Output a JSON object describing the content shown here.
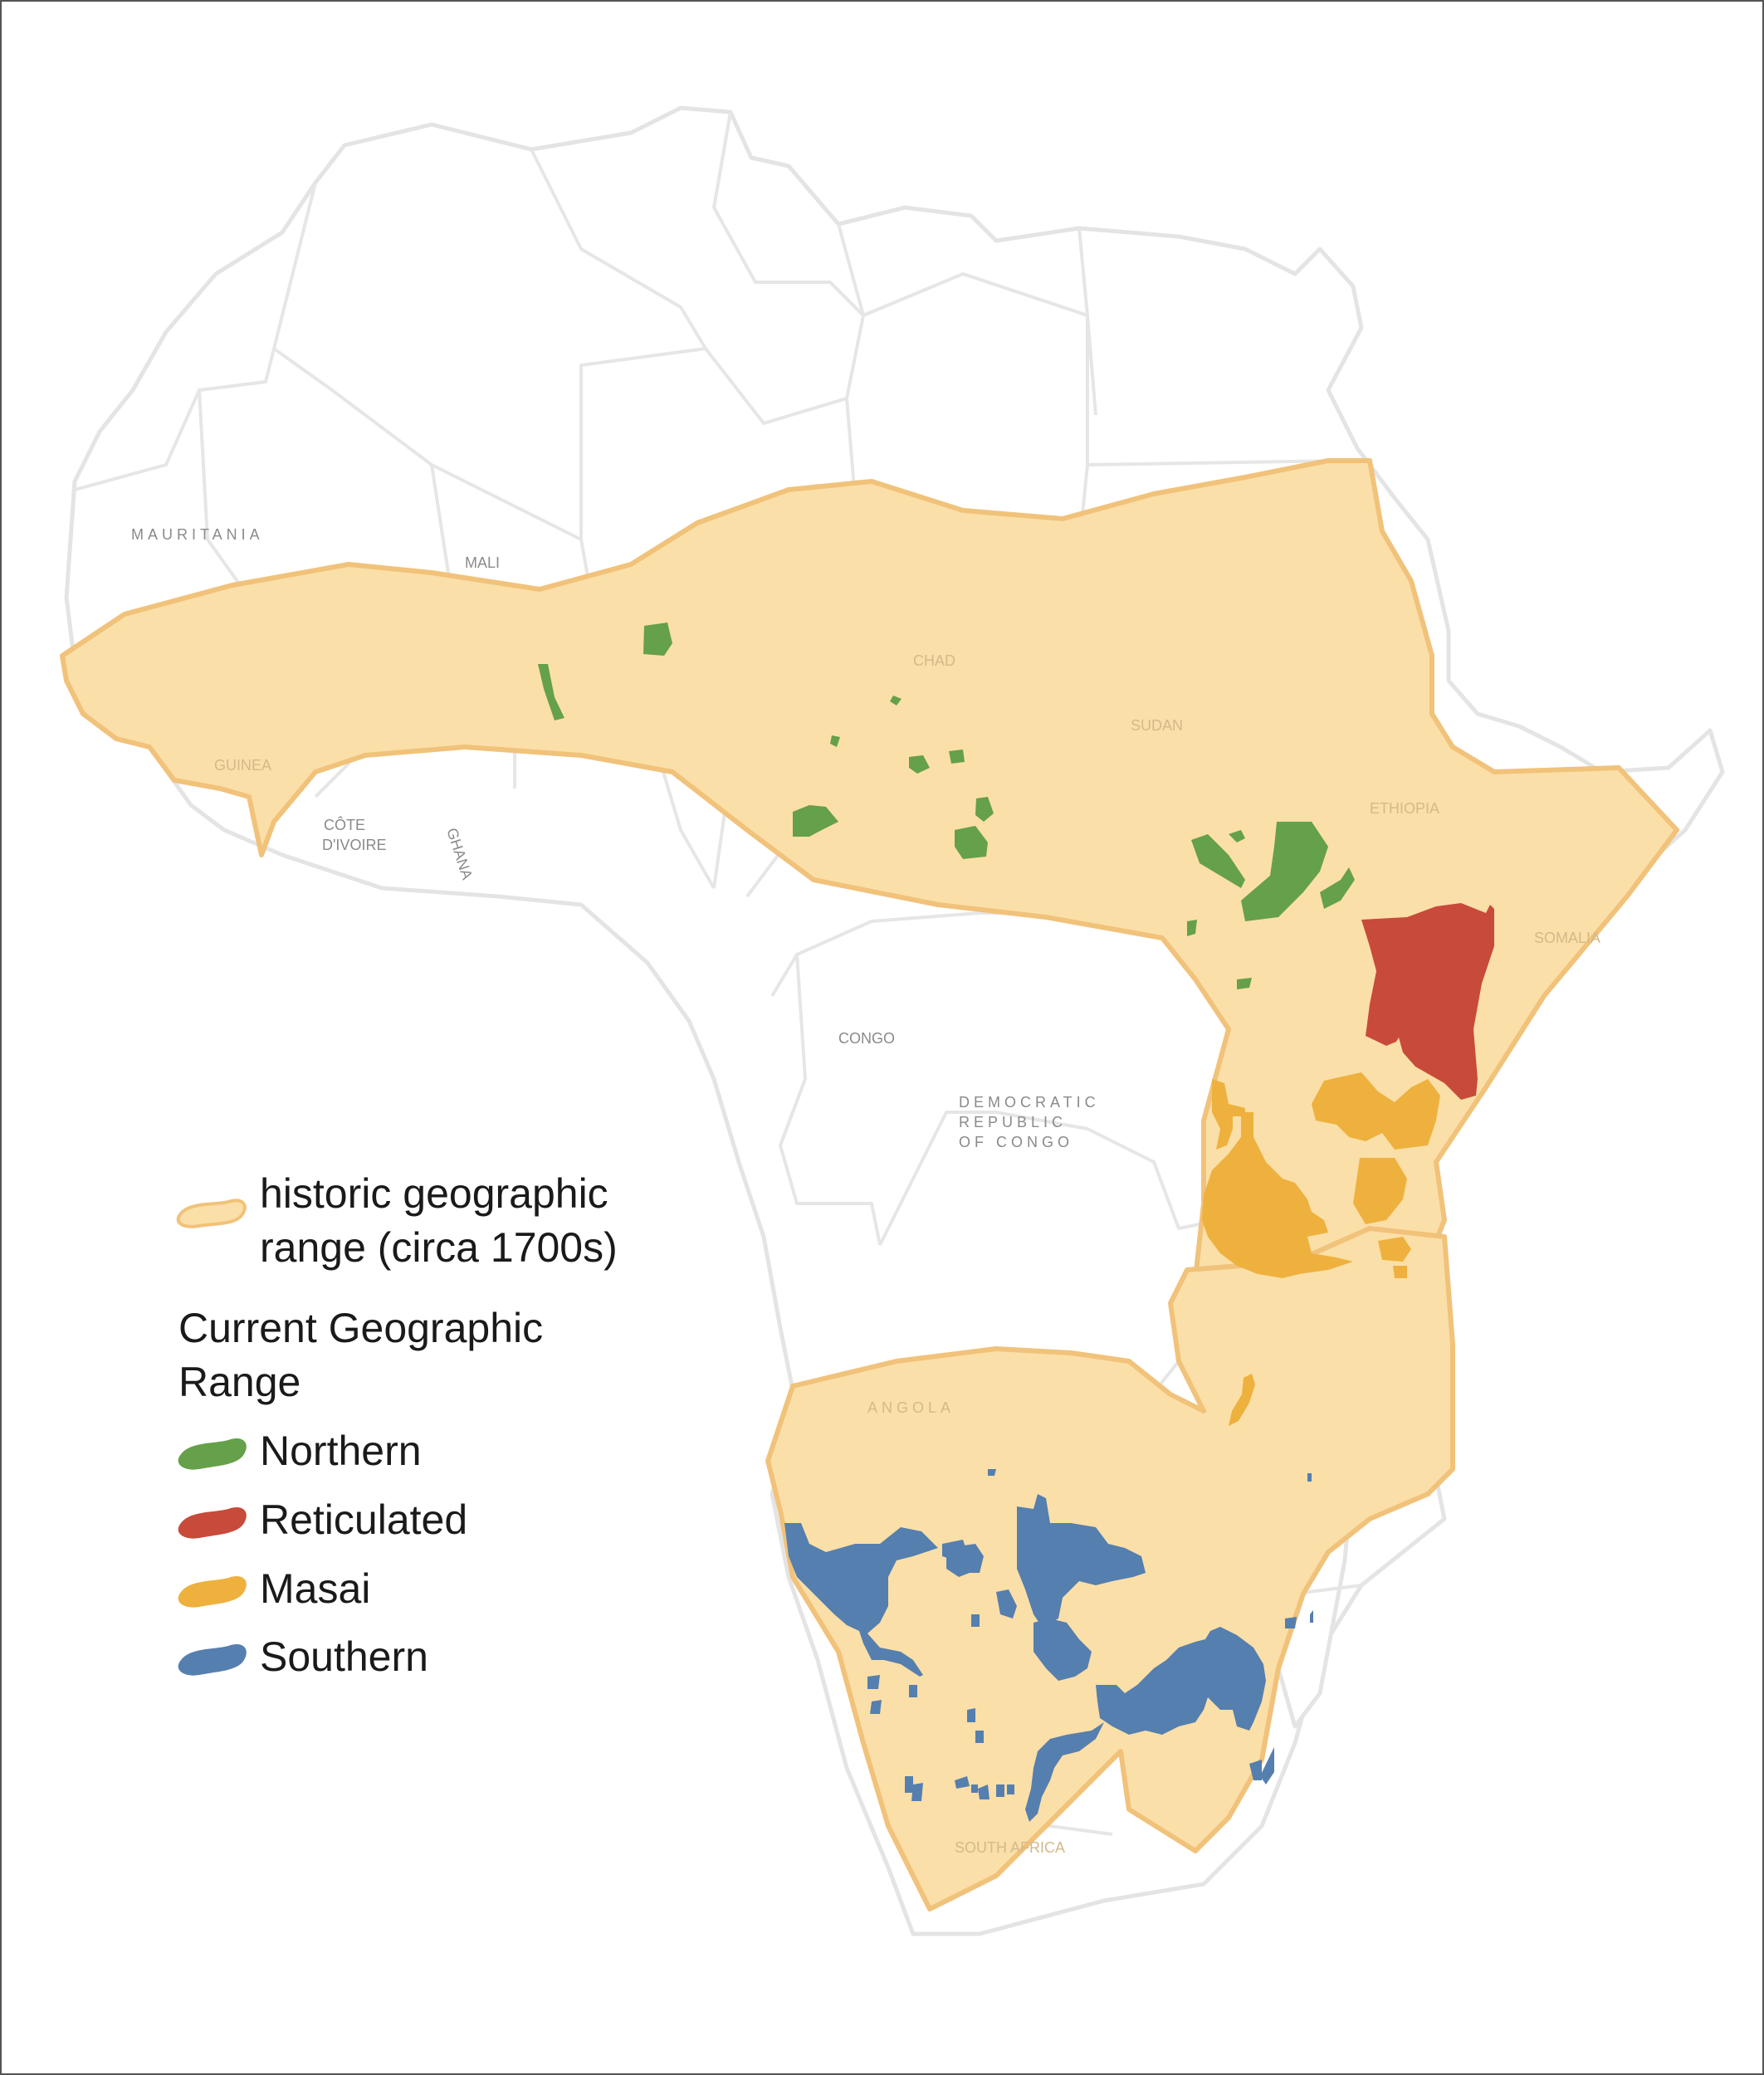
{
  "colors": {
    "land": "#ffffff",
    "border": "#e6e6e6",
    "historic_fill": "#fbdfa8",
    "historic_stroke": "#f1c27a",
    "northern": "#65a04a",
    "reticulated": "#c84a3a",
    "masai": "#eeb13e",
    "southern": "#557fae",
    "label": "#8a8a8a"
  },
  "legend": {
    "historic_line1": "historic geographic",
    "historic_line2": "range (circa 1700s)",
    "current_line1": "Current Geographic",
    "current_line2": "Range",
    "items": [
      {
        "label": "Northern",
        "color_key": "northern"
      },
      {
        "label": "Reticulated",
        "color_key": "reticulated"
      },
      {
        "label": "Masai",
        "color_key": "masai"
      },
      {
        "label": "Southern",
        "color_key": "southern"
      }
    ]
  },
  "countries": {
    "mauritania": "MAURITANIA",
    "mali": "MALI",
    "chad": "CHAD",
    "sudan": "SUDAN",
    "guinea": "GUINEA",
    "cote_divoire_1": "CÔTE",
    "cote_divoire_2": "D'IVOIRE",
    "ghana": "GHANA",
    "ethiopia": "ETHIOPIA",
    "somalia": "SOMALIA",
    "congo": "CONGO",
    "drc_1": "DEMOCRATIC",
    "drc_2": "REPUBLIC",
    "drc_3": "OF CONGO",
    "angola": "ANGOLA",
    "south_africa": "SOUTH AFRICA"
  }
}
